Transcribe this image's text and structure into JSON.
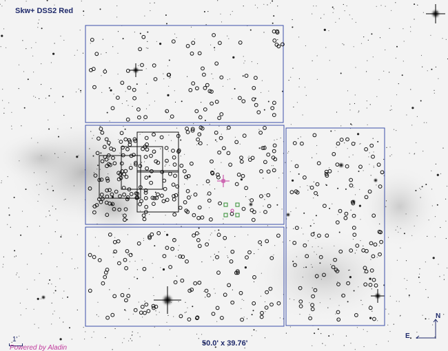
{
  "view": {
    "survey_label": "Skw+ DSS2 Red",
    "field_of_view": "50.0' x 39.76'",
    "scale_label": "1'",
    "credit": "Powered by Aladin"
  },
  "compass": {
    "north": "N",
    "east": "E"
  },
  "colors": {
    "footprint": "#3b4fa8",
    "source_marker": "#111111",
    "highlight_cross": "#c0399c",
    "selection": "#2e8b2e",
    "label": "#1f2a6b"
  }
}
